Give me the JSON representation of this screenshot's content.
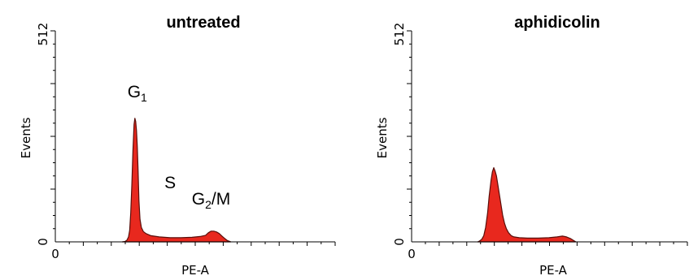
{
  "chart_data": [
    {
      "type": "area",
      "title": "untreated",
      "xlabel": "PE-A",
      "ylabel": "Events",
      "xlim": [
        0,
        1024
      ],
      "ylim": [
        0,
        512
      ],
      "yticks_labeled": [
        "0",
        "512"
      ],
      "xticks_labeled": [
        "0"
      ],
      "grid": false,
      "fill_color": "#e8281e",
      "annotations": [
        {
          "id": "g1",
          "base": "G",
          "sub": "1",
          "after": "",
          "at_x": 300
        },
        {
          "id": "s",
          "base": "S",
          "sub": "",
          "after": "",
          "at_x": 420
        },
        {
          "id": "g2m",
          "base": "G",
          "sub": "2",
          "after": "/M",
          "at_x": 570
        }
      ],
      "series": [
        {
          "x": [
            245,
            255,
            262,
            268,
            272,
            276,
            280,
            284,
            288,
            291,
            294,
            297,
            300,
            303,
            306,
            310,
            315,
            322,
            332,
            350,
            380,
            420,
            460,
            500,
            530,
            550,
            560,
            570,
            580,
            590,
            600,
            610,
            620,
            630,
            642
          ],
          "values": [
            0,
            1,
            4,
            12,
            28,
            70,
            140,
            220,
            285,
            300,
            292,
            270,
            230,
            170,
            100,
            55,
            35,
            25,
            20,
            15,
            12,
            10,
            10,
            11,
            13,
            16,
            22,
            26,
            26,
            24,
            20,
            14,
            8,
            3,
            0
          ]
        }
      ]
    },
    {
      "type": "area",
      "title": "aphidicolin",
      "xlabel": "PE-A",
      "ylabel": "Events",
      "xlim": [
        0,
        1024
      ],
      "ylim": [
        0,
        512
      ],
      "yticks_labeled": [
        "0",
        "512"
      ],
      "xticks_labeled": [
        "0"
      ],
      "grid": false,
      "fill_color": "#e8281e",
      "series": [
        {
          "x": [
            245,
            252,
            260,
            268,
            275,
            282,
            288,
            295,
            300,
            305,
            310,
            315,
            320,
            326,
            332,
            338,
            345,
            352,
            360,
            370,
            380,
            400,
            430,
            470,
            510,
            540,
            560,
            575,
            590,
            600,
            610
          ],
          "values": [
            0,
            2,
            6,
            15,
            35,
            70,
            110,
            150,
            170,
            180,
            172,
            160,
            140,
            115,
            90,
            65,
            45,
            32,
            22,
            15,
            12,
            10,
            9,
            9,
            10,
            12,
            14,
            12,
            8,
            4,
            0
          ]
        }
      ]
    }
  ]
}
